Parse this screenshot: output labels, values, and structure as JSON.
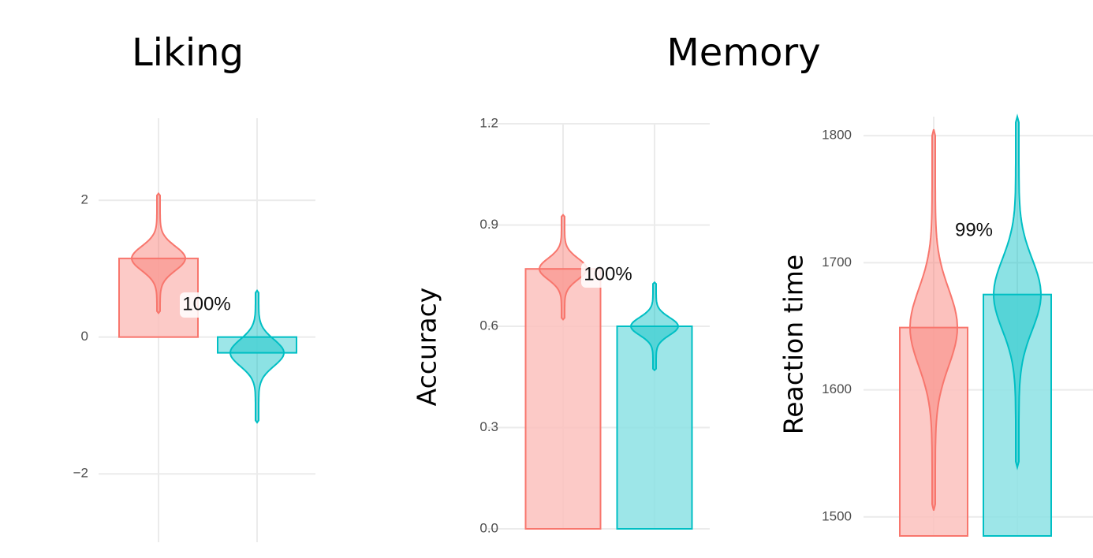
{
  "chart_data": [
    {
      "type": "bar",
      "title": "Liking",
      "categories": [
        null,
        null
      ],
      "values": [
        1.15,
        -0.23
      ],
      "violin_min": [
        0.35,
        -1.25
      ],
      "violin_max": [
        2.1,
        0.68
      ],
      "colors": [
        "#f8766d",
        "#00bfc4"
      ],
      "ylim": [
        -3,
        3.2
      ],
      "yticks": [
        {
          "value": -2,
          "label": "−2"
        },
        0,
        2
      ],
      "annotation": "100%",
      "grid": true
    },
    {
      "type": "bar",
      "title": "Memory",
      "ylabel": "Accuracy",
      "categories": [
        null,
        null
      ],
      "values": [
        0.77,
        0.6
      ],
      "violin_min": [
        0.62,
        0.47
      ],
      "violin_max": [
        0.93,
        0.73
      ],
      "colors": [
        "#f8766d",
        "#00bfc4"
      ],
      "ylim": [
        0,
        1.2
      ],
      "yticks": [
        {
          "value": 0,
          "label": "0.0"
        },
        0.3,
        0.6,
        0.9,
        1.2
      ],
      "annotation": "100%",
      "grid": true
    },
    {
      "type": "bar",
      "ylabel": "Reaction time",
      "categories": [
        null,
        null
      ],
      "values": [
        1649,
        1675
      ],
      "violin_min": [
        1505,
        1539
      ],
      "violin_max": [
        1805,
        1815
      ],
      "colors": [
        "#f8766d",
        "#00bfc4"
      ],
      "ylim": [
        1485,
        1815
      ],
      "yticks": [
        1500,
        1600,
        1700,
        1800
      ],
      "annotation": "99%",
      "grid": true
    }
  ]
}
